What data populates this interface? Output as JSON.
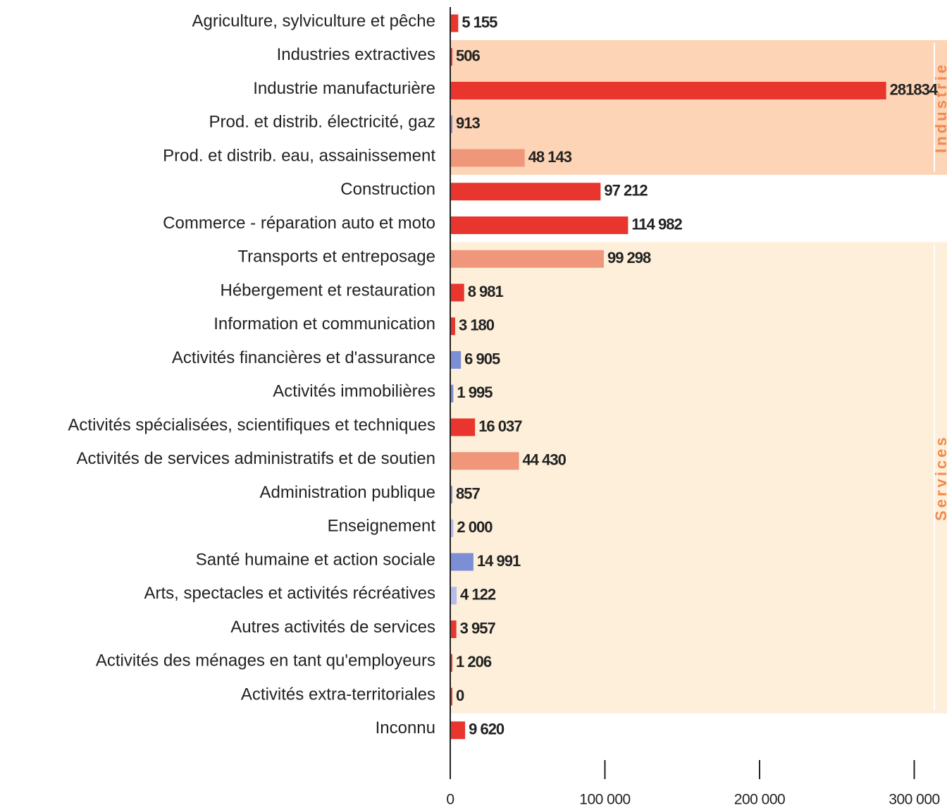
{
  "chart_data": {
    "type": "hbar",
    "categories": [
      "Agriculture, sylviculture et pêche",
      "Industries extractives",
      "Industrie manufacturière",
      "Prod. et distrib. électricité, gaz",
      "Prod. et distrib. eau, assainissement",
      "Construction",
      "Commerce - réparation auto et moto",
      "Transports et entreposage",
      "Hébergement et restauration",
      "Information et communication",
      "Activités financières et d'assurance",
      "Activités immobilières",
      "Activités spécialisées, scientifiques et techniques",
      "Activités de services administratifs et de soutien",
      "Administration publique",
      "Enseignement",
      "Santé humaine et action sociale",
      "Arts, spectacles et activités récréatives",
      "Autres activités de services",
      "Activités des ménages en tant qu'employeurs",
      "Activités extra-territoriales",
      "Inconnu"
    ],
    "values": [
      5155,
      506,
      281834,
      913,
      48143,
      97212,
      114982,
      99298,
      8981,
      3180,
      6905,
      1995,
      16037,
      44430,
      857,
      2000,
      14991,
      4122,
      3957,
      1206,
      0,
      9620
    ],
    "value_labels": [
      "5 155",
      "506",
      "281834",
      "913",
      "48 143",
      "97 212",
      "114 982",
      "99 298",
      "8 981",
      "3 180",
      "6 905",
      "1 995",
      "16 037",
      "44 430",
      "857",
      "2 000",
      "14 991",
      "4 122",
      "3 957",
      "1 206",
      "0",
      "9 620"
    ],
    "colors": [
      "#e8362f",
      "#e8362f",
      "#e8362f",
      "#7b8ed6",
      "#f0967a",
      "#e8362f",
      "#e8362f",
      "#f0967a",
      "#e8362f",
      "#e8362f",
      "#7b8ed6",
      "#7b8ed6",
      "#e8362f",
      "#f0967a",
      "#7b8ed6",
      "#b4bde9",
      "#7b8ed6",
      "#b4bde9",
      "#e8362f",
      "#e8362f",
      "#e8362f",
      "#e8362f"
    ],
    "groups": [
      {
        "label": "Industrie",
        "rows": [
          1,
          4
        ],
        "color": "#fdd4b6"
      },
      {
        "label": "Services",
        "rows": [
          7,
          20
        ],
        "color": "#fdefd9"
      }
    ],
    "xlim": [
      0,
      320000
    ],
    "xticks": [
      0,
      {
        "value": 100000,
        "label": "100 000"
      },
      {
        "value": 200000,
        "label": "200 000"
      },
      {
        "value": 300000,
        "label": "300 000"
      }
    ]
  }
}
